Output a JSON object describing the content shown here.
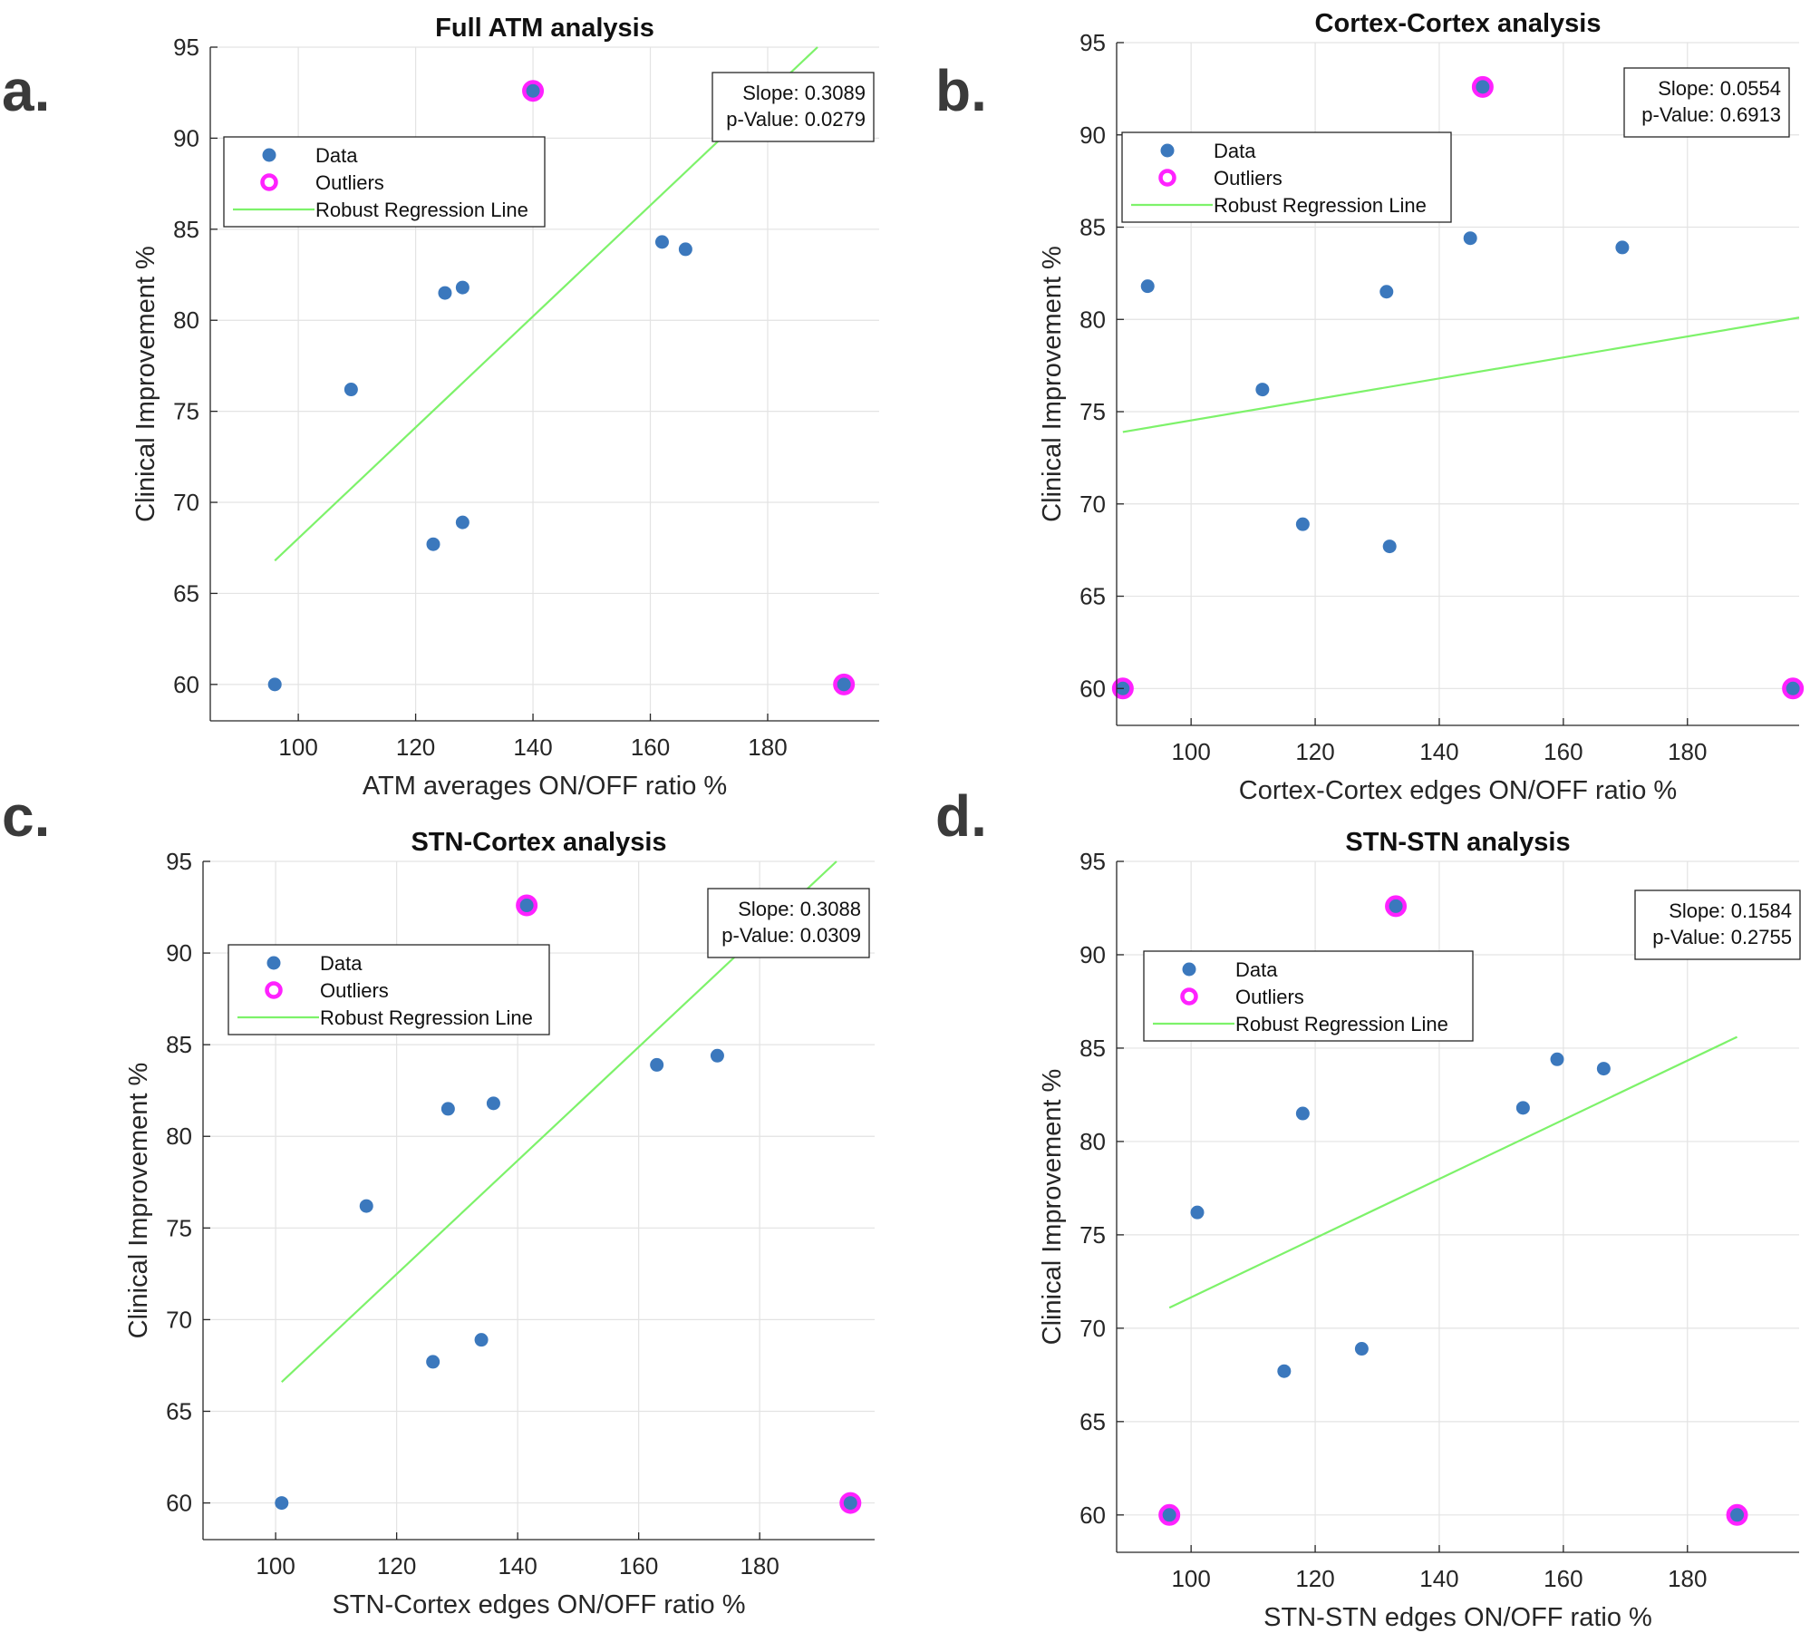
{
  "panel_letters": [
    "a.",
    "b.",
    "c.",
    "d."
  ],
  "colors": {
    "data": "#3b78bd",
    "outlier": "#ff22ff",
    "regression": "#7df26a",
    "axis": "#262626",
    "grid": "#e3e3e3"
  },
  "chart_data": [
    {
      "type": "scatter",
      "title": "Full ATM analysis",
      "xlabel": "ATM averages ON/OFF ratio %",
      "ylabel": "Clinical Improvement %",
      "xlim": [
        85,
        199
      ],
      "ylim": [
        58,
        95
      ],
      "xticks": [
        100,
        120,
        140,
        160,
        180
      ],
      "yticks": [
        60,
        65,
        70,
        75,
        80,
        85,
        90,
        95
      ],
      "legend": {
        "position": "top-left",
        "entries": [
          "Data",
          "Outliers",
          "Robust Regression Line"
        ]
      },
      "stats": {
        "slope": "Slope: 0.3089",
        "p_value": "p-Value: 0.0279"
      },
      "data": [
        [
          96,
          60
        ],
        [
          109,
          76.2
        ],
        [
          123,
          67.7
        ],
        [
          125,
          81.5
        ],
        [
          128,
          81.8
        ],
        [
          128,
          68.9
        ],
        [
          162,
          84.3
        ],
        [
          166,
          83.9
        ],
        [
          140,
          92.6
        ],
        [
          193,
          60
        ]
      ],
      "outliers": [
        [
          140,
          92.6
        ],
        [
          193,
          60
        ]
      ],
      "regression": {
        "x": [
          96,
          188.5
        ],
        "y": [
          66.8,
          95
        ]
      }
    },
    {
      "type": "scatter",
      "title": "Cortex-Cortex analysis",
      "xlabel": "Cortex-Cortex edges ON/OFF ratio %",
      "ylabel": "Clinical Improvement %",
      "xlim": [
        88,
        198
      ],
      "ylim": [
        58,
        95
      ],
      "xticks": [
        100,
        120,
        140,
        160,
        180
      ],
      "yticks": [
        60,
        65,
        70,
        75,
        80,
        85,
        90,
        95
      ],
      "legend": {
        "position": "top-left",
        "entries": [
          "Data",
          "Outliers",
          "Robust Regression Line"
        ]
      },
      "stats": {
        "slope": "Slope: 0.0554",
        "p_value": "p-Value: 0.6913"
      },
      "data": [
        [
          89,
          60
        ],
        [
          93,
          81.8
        ],
        [
          111.5,
          76.2
        ],
        [
          118,
          68.9
        ],
        [
          131.5,
          81.5
        ],
        [
          132,
          67.7
        ],
        [
          145,
          84.4
        ],
        [
          169.5,
          83.9
        ],
        [
          147,
          92.6
        ],
        [
          197,
          60
        ]
      ],
      "outliers": [
        [
          147,
          92.6
        ],
        [
          89,
          60
        ],
        [
          197,
          60
        ]
      ],
      "regression": {
        "x": [
          89,
          198
        ],
        "y": [
          73.9,
          80.1
        ]
      }
    },
    {
      "type": "scatter",
      "title": "STN-Cortex analysis",
      "xlabel": "STN-Cortex edges ON/OFF ratio %",
      "ylabel": "Clinical Improvement %",
      "xlim": [
        88,
        199
      ],
      "ylim": [
        58,
        95
      ],
      "xticks": [
        100,
        120,
        140,
        160,
        180
      ],
      "yticks": [
        60,
        65,
        70,
        75,
        80,
        85,
        90,
        95
      ],
      "legend": {
        "position": "top-left",
        "entries": [
          "Data",
          "Outliers",
          "Robust Regression Line"
        ]
      },
      "stats": {
        "slope": "Slope: 0.3088",
        "p_value": "p-Value: 0.0309"
      },
      "data": [
        [
          101,
          60
        ],
        [
          115,
          76.2
        ],
        [
          126,
          67.7
        ],
        [
          128.5,
          81.5
        ],
        [
          134,
          68.9
        ],
        [
          136,
          81.8
        ],
        [
          163,
          83.9
        ],
        [
          173,
          84.4
        ],
        [
          141.5,
          92.6
        ],
        [
          195,
          60
        ]
      ],
      "outliers": [
        [
          141.5,
          92.6
        ],
        [
          195,
          60
        ]
      ],
      "regression": {
        "x": [
          101,
          192.7
        ],
        "y": [
          66.6,
          95
        ]
      }
    },
    {
      "type": "scatter",
      "title": "STN-STN analysis",
      "xlabel": "STN-STN edges ON/OFF ratio %",
      "ylabel": "Clinical Improvement %",
      "xlim": [
        88,
        198
      ],
      "ylim": [
        58,
        95
      ],
      "xticks": [
        100,
        120,
        140,
        160,
        180
      ],
      "yticks": [
        60,
        65,
        70,
        75,
        80,
        85,
        90,
        95
      ],
      "legend": {
        "position": "top-left",
        "entries": [
          "Data",
          "Outliers",
          "Robust Regression Line"
        ]
      },
      "stats": {
        "slope": "Slope: 0.1584",
        "p_value": "p-Value: 0.2755"
      },
      "data": [
        [
          96.5,
          60
        ],
        [
          101,
          76.2
        ],
        [
          115,
          67.7
        ],
        [
          118,
          81.5
        ],
        [
          127.5,
          68.9
        ],
        [
          153.5,
          81.8
        ],
        [
          159,
          84.4
        ],
        [
          166.5,
          83.9
        ],
        [
          133,
          92.6
        ],
        [
          188,
          60
        ]
      ],
      "outliers": [
        [
          133,
          92.6
        ],
        [
          96.5,
          60
        ],
        [
          188,
          60
        ]
      ],
      "regression": {
        "x": [
          96.5,
          188
        ],
        "y": [
          71.1,
          85.6
        ]
      }
    }
  ]
}
